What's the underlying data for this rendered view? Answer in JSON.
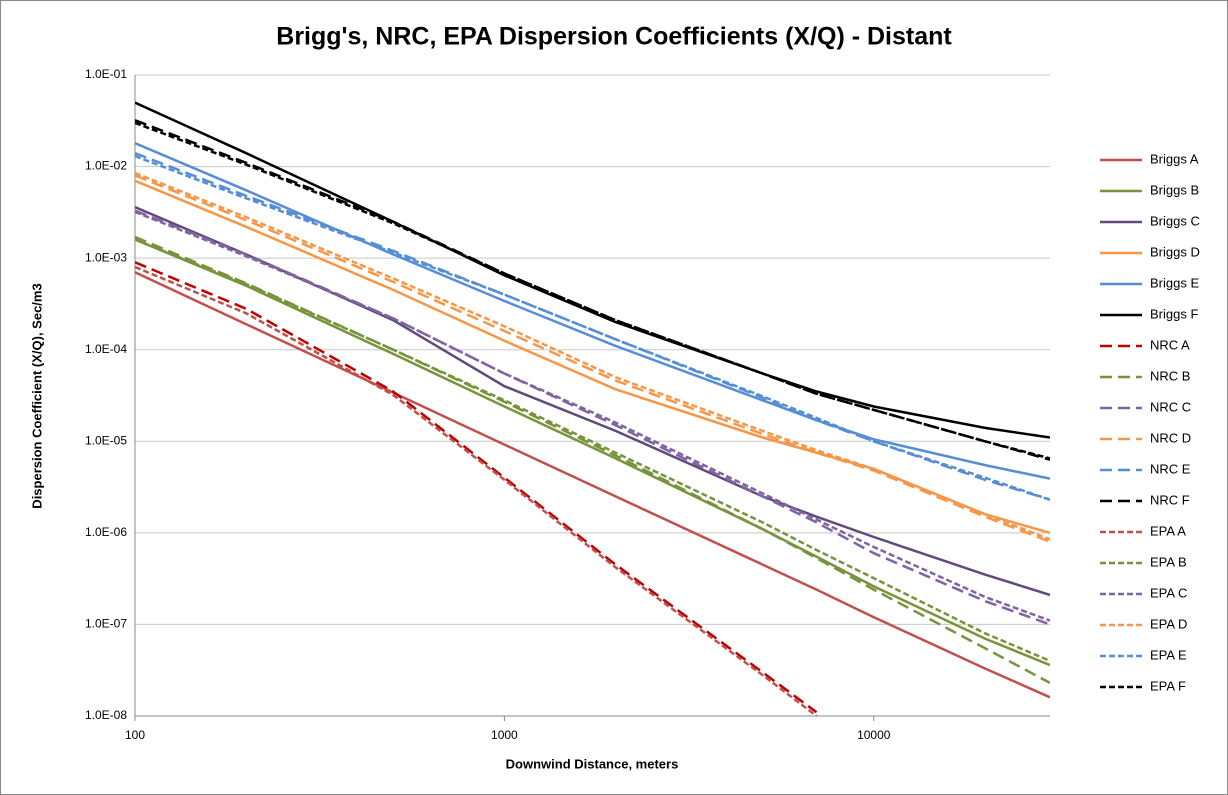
{
  "chart_data": {
    "type": "line",
    "title": "Brigg's, NRC, EPA Dispersion Coefficients (X/Q) - Distant",
    "xlabel": "Downwind Distance, meters",
    "ylabel": "Dispersion Coefficient (X/Q), Sec/m3",
    "xscale": "log",
    "yscale": "log",
    "grid": true,
    "legend": "right",
    "xlim": [
      100,
      30000
    ],
    "xticks": [
      100,
      1000,
      10000
    ],
    "ylim": [
      1e-08,
      0.1
    ],
    "yticks": [
      {
        "value": 1e-08,
        "label": "1.0E-08"
      },
      {
        "value": 1e-07,
        "label": "1.0E-07"
      },
      {
        "value": 1e-06,
        "label": "1.0E-06"
      },
      {
        "value": 1e-05,
        "label": "1.0E-05"
      },
      {
        "value": 0.0001,
        "label": "1.0E-04"
      },
      {
        "value": 0.001,
        "label": "1.0E-03"
      },
      {
        "value": 0.01,
        "label": "1.0E-02"
      },
      {
        "value": 0.1,
        "label": "1.0E-01"
      }
    ],
    "x": [
      100,
      200,
      500,
      1000,
      2000,
      5000,
      7000,
      10000,
      20000,
      30000
    ],
    "series": [
      {
        "name": "Briggs A",
        "color": "#c0504d",
        "dash": "solid",
        "values": [
          0.0007,
          0.00019,
          3.4e-05,
          9.2e-06,
          2.5e-06,
          4.5e-07,
          2.4e-07,
          1.2e-07,
          3.3e-08,
          1.6e-08
        ]
      },
      {
        "name": "Briggs B",
        "color": "#77933c",
        "dash": "solid",
        "values": [
          0.0016,
          0.0005,
          9e-05,
          2.4e-05,
          6.5e-06,
          1.1e-06,
          5.5e-07,
          2.6e-07,
          7e-08,
          3.6e-08
        ]
      },
      {
        "name": "Briggs C",
        "color": "#604a7b",
        "dash": "solid",
        "values": [
          0.0036,
          0.0011,
          0.00021,
          4e-05,
          1.3e-05,
          2.5e-06,
          1.5e-06,
          9e-07,
          3.5e-07,
          2.1e-07
        ]
      },
      {
        "name": "Briggs D",
        "color": "#f79646",
        "dash": "solid",
        "values": [
          0.007,
          0.0022,
          0.00045,
          0.000125,
          3.7e-05,
          1.1e-05,
          7.5e-06,
          5e-06,
          1.6e-06,
          1e-06
        ]
      },
      {
        "name": "Briggs E",
        "color": "#558ed5",
        "dash": "solid",
        "values": [
          0.018,
          0.0055,
          0.0011,
          0.00034,
          0.00011,
          2.8e-05,
          1.7e-05,
          1.05e-05,
          5.5e-06,
          3.9e-06
        ]
      },
      {
        "name": "Briggs F",
        "color": "#000000",
        "dash": "solid",
        "values": [
          0.05,
          0.014,
          0.0025,
          0.00065,
          0.0002,
          5.5e-05,
          3.5e-05,
          2.4e-05,
          1.4e-05,
          1.1e-05
        ]
      },
      {
        "name": "NRC A",
        "color": "#c00000",
        "dash": "long",
        "values": [
          0.0009,
          0.00028,
          3.5e-05,
          4e-06,
          4.5e-07,
          3e-08,
          1.1e-08,
          null,
          null,
          null
        ]
      },
      {
        "name": "NRC B",
        "color": "#77933c",
        "dash": "long",
        "values": [
          0.0017,
          0.00053,
          0.0001,
          2.7e-05,
          7e-06,
          1.1e-06,
          5.3e-07,
          2.4e-07,
          5.5e-08,
          2.3e-08
        ]
      },
      {
        "name": "NRC C",
        "color": "#8064a2",
        "dash": "long",
        "values": [
          0.0033,
          0.0011,
          0.00022,
          5.5e-05,
          1.5e-05,
          2.5e-06,
          1.3e-06,
          6e-07,
          1.8e-07,
          1e-07
        ]
      },
      {
        "name": "NRC D",
        "color": "#f79646",
        "dash": "long",
        "values": [
          0.008,
          0.0026,
          0.00055,
          0.00016,
          4.6e-05,
          1.2e-05,
          7.5e-06,
          4.8e-06,
          1.5e-06,
          8e-07
        ]
      },
      {
        "name": "NRC E",
        "color": "#558ed5",
        "dash": "long",
        "values": [
          0.014,
          0.0048,
          0.0012,
          0.0004,
          0.00013,
          3e-05,
          1.7e-05,
          1e-05,
          3.8e-06,
          2.3e-06
        ]
      },
      {
        "name": "NRC F",
        "color": "#000000",
        "dash": "long",
        "values": [
          0.032,
          0.011,
          0.0025,
          0.00068,
          0.00021,
          5.5e-05,
          3.3e-05,
          2.2e-05,
          1e-05,
          6.3e-06
        ]
      },
      {
        "name": "EPA A",
        "color": "#c0504d",
        "dash": "short",
        "values": [
          0.0008,
          0.00025,
          3.2e-05,
          3.8e-06,
          4.2e-07,
          2.8e-08,
          1e-08,
          null,
          null,
          null
        ]
      },
      {
        "name": "EPA B",
        "color": "#77933c",
        "dash": "short",
        "values": [
          0.0016,
          0.00052,
          0.0001,
          2.8e-05,
          7.5e-06,
          1.3e-06,
          6.5e-07,
          3.2e-07,
          8e-08,
          4e-08
        ]
      },
      {
        "name": "EPA C",
        "color": "#8064a2",
        "dash": "short",
        "values": [
          0.0032,
          0.00105,
          0.00022,
          5.5e-05,
          1.6e-05,
          2.7e-06,
          1.4e-06,
          7e-07,
          2e-07,
          1.1e-07
        ]
      },
      {
        "name": "EPA D",
        "color": "#f79646",
        "dash": "short",
        "values": [
          0.0085,
          0.0028,
          0.0006,
          0.00018,
          5e-05,
          1.3e-05,
          8e-06,
          5e-06,
          1.6e-06,
          8.5e-07
        ]
      },
      {
        "name": "EPA E",
        "color": "#558ed5",
        "dash": "short",
        "values": [
          0.013,
          0.0045,
          0.00115,
          0.0004,
          0.00013,
          3.1e-05,
          1.8e-05,
          1e-05,
          4e-06,
          2.3e-06
        ]
      },
      {
        "name": "EPA F",
        "color": "#000000",
        "dash": "short",
        "values": [
          0.03,
          0.0105,
          0.0024,
          0.00068,
          0.00021,
          5.5e-05,
          3.3e-05,
          2.2e-05,
          1e-05,
          6.5e-06
        ]
      }
    ]
  }
}
